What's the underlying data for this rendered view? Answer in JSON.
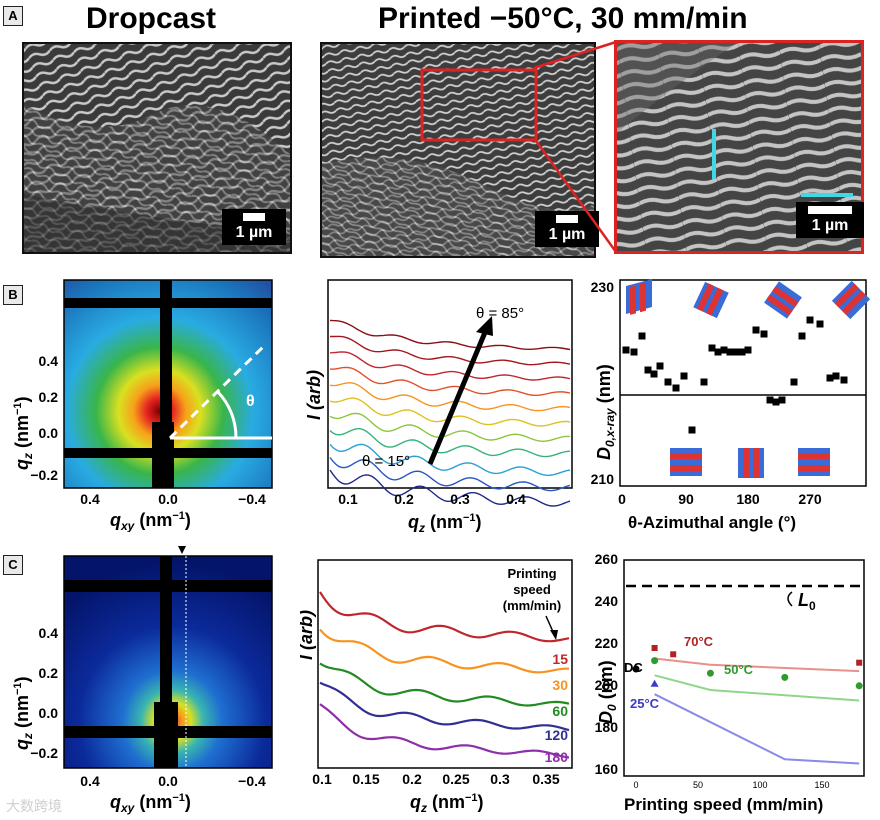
{
  "panel_labels": {
    "a": "A",
    "b": "B",
    "c": "C"
  },
  "row_a": {
    "title_left": "Dropcast",
    "title_right": "Printed −50°C, 30 mm/min",
    "scale_label": "1 µm"
  },
  "row_b": {
    "saxs": {
      "ylabel_base": "q",
      "ylabel_sub": "z",
      "ylabel_unit": " (nm",
      "ylabel_exp": "−1",
      "ylabel_close": ")",
      "xlabel_base": "q",
      "xlabel_sub": "xy",
      "xlabel_unit": " (nm",
      "xlabel_exp": "−1",
      "xlabel_close": ")",
      "yticks": [
        "0.4",
        "0.2",
        "0.0",
        "−0.2"
      ],
      "xticks": [
        "0.4",
        "0.0",
        "−0.4"
      ],
      "theta": "θ"
    },
    "profiles": {
      "ylabel": "I (arb)",
      "xlabel_base": "q",
      "xlabel_sub": "z",
      "xlabel_unit": " (nm",
      "xlabel_exp": "−1",
      "xlabel_close": ")",
      "xticks": [
        "0.1",
        "0.2",
        "0.3",
        "0.4"
      ],
      "label_high": "θ = 85°",
      "label_low": "θ = 15°"
    },
    "azimuth": {
      "ylabel_base": "D",
      "ylabel_sub": "0,x-ray",
      "ylabel_unit": " (nm)",
      "xlabel": "θ-Azimuthal angle (°)",
      "ytick_top": "230",
      "ytick_bottom": "210",
      "xticks": [
        "0",
        "90",
        "180",
        "270"
      ]
    }
  },
  "row_c": {
    "saxs": {
      "yticks": [
        "0.4",
        "0.2",
        "0.0",
        "−0.2"
      ],
      "xticks": [
        "0.4",
        "0.0",
        "−0.4"
      ]
    },
    "profiles": {
      "ylabel": "I (arb)",
      "xticks": [
        "0.1",
        "0.15",
        "0.2",
        "0.25",
        "0.3",
        "0.35"
      ],
      "legend_title": [
        "Printing",
        "speed",
        "(mm/min)"
      ],
      "speeds": [
        {
          "label": "15",
          "color": "#c0272d"
        },
        {
          "label": "30",
          "color": "#f7931e"
        },
        {
          "label": "60",
          "color": "#238b22"
        },
        {
          "label": "120",
          "color": "#2e3192"
        },
        {
          "label": "180",
          "color": "#8e2ea8"
        }
      ]
    },
    "speed_plot": {
      "ylabel_base": "D",
      "ylabel_sub": "0",
      "ylabel_unit": " (nm)",
      "xlabel": "Printing speed (mm/min)",
      "yticks": [
        "260",
        "240",
        "220",
        "200",
        "180",
        "160"
      ],
      "xticks": [
        "0",
        "50",
        "100",
        "150"
      ],
      "l0_base": "L",
      "l0_sub": "0",
      "label_70": "70°C",
      "label_50": "50°C",
      "label_25": "25°C",
      "label_dc": "DC",
      "color_70": "#b22222",
      "color_50": "#2e9b2e",
      "color_25": "#3b3bc4"
    }
  },
  "watermark": "大数跨境"
}
